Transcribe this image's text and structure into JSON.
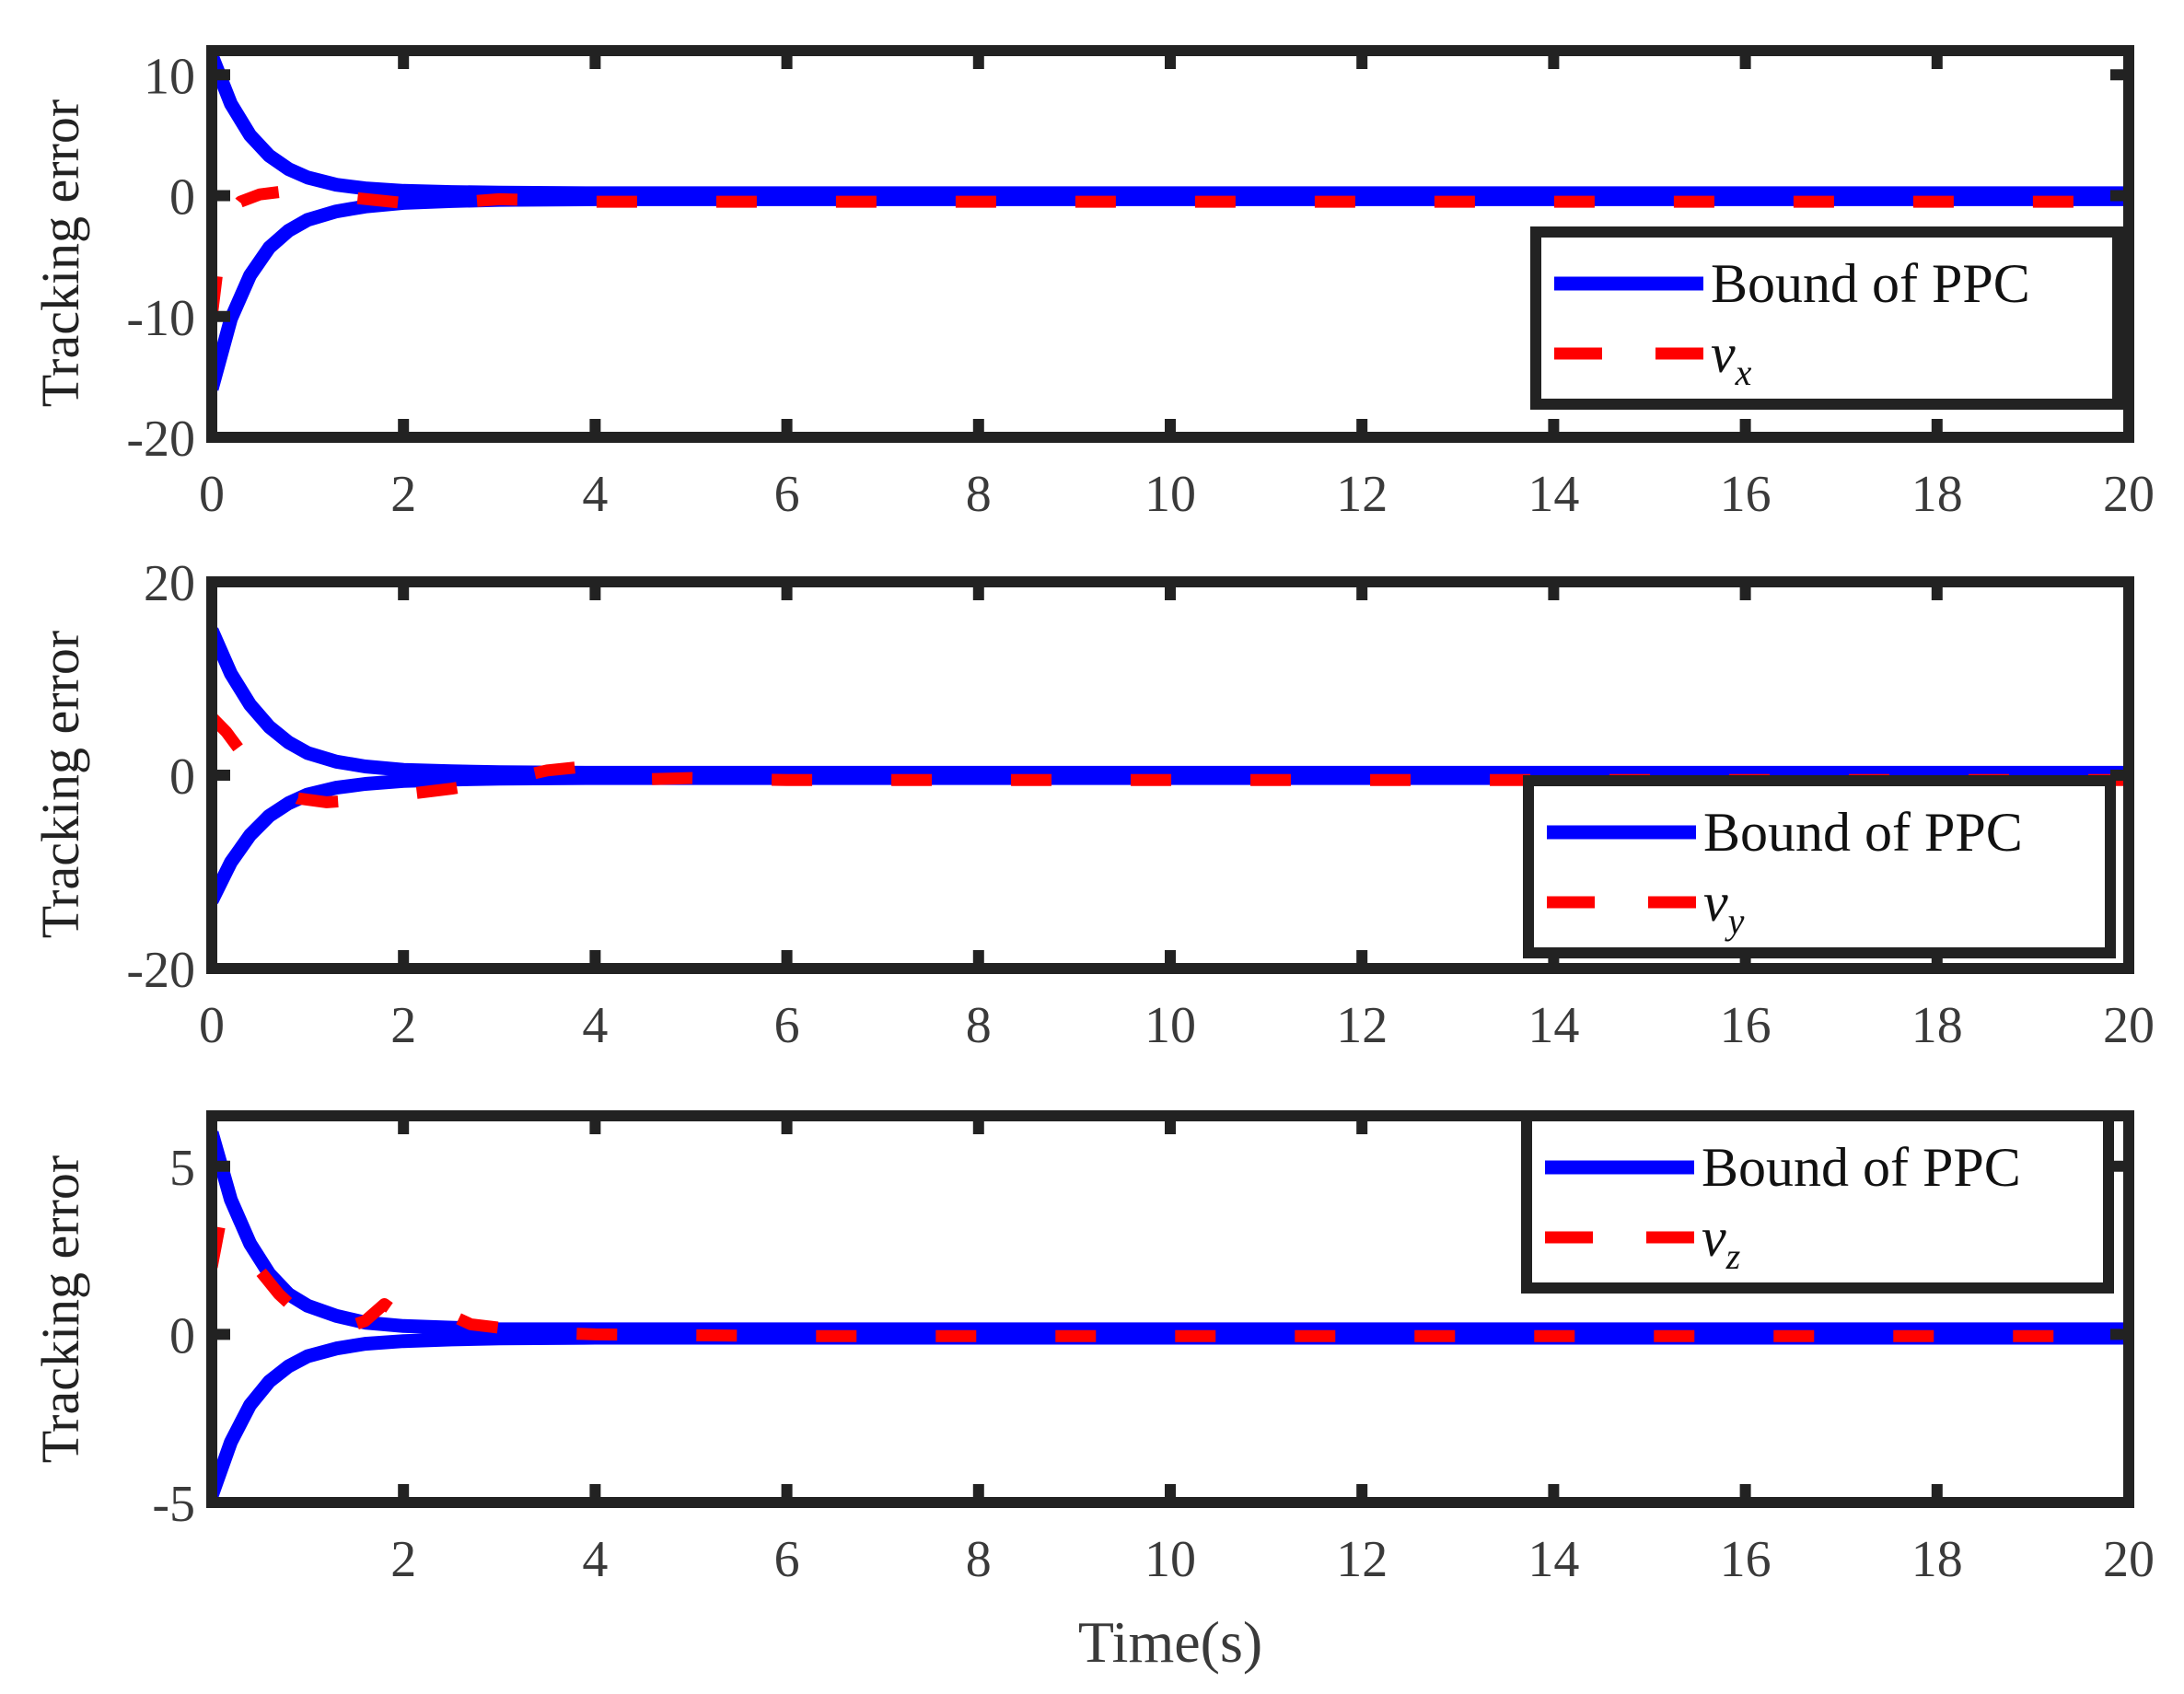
{
  "colors": {
    "bound": "#0000ff",
    "signal": "#ff0000",
    "frame": "#222222"
  },
  "shared_xlabel": "Time(s)",
  "chart_data": [
    {
      "type": "line",
      "ylabel": "Tracking error",
      "xlim": [
        0,
        20
      ],
      "ylim": [
        -20,
        12
      ],
      "xticks": [
        "0",
        "2",
        "4",
        "6",
        "8",
        "10",
        "12",
        "14",
        "16",
        "18",
        "20"
      ],
      "yticks": [
        "-20",
        "-10",
        "0",
        "10"
      ],
      "legend_position": "right",
      "legend": {
        "bound": "Bound of PPC",
        "var": "v",
        "sub": "x"
      },
      "series": [
        {
          "role": "bound-upper",
          "x": [
            0,
            0.2,
            0.4,
            0.6,
            0.8,
            1,
            1.3,
            1.6,
            2,
            2.5,
            3,
            4,
            6,
            10,
            20
          ],
          "y": [
            11.6,
            7.6,
            5.0,
            3.3,
            2.2,
            1.5,
            0.9,
            0.6,
            0.4,
            0.3,
            0.25,
            0.2,
            0.2,
            0.2,
            0.2
          ]
        },
        {
          "role": "bound-lower",
          "x": [
            0,
            0.2,
            0.4,
            0.6,
            0.8,
            1,
            1.3,
            1.6,
            2,
            2.5,
            3,
            4,
            6,
            10,
            20
          ],
          "y": [
            -16.0,
            -10.2,
            -6.6,
            -4.3,
            -2.9,
            -2.0,
            -1.3,
            -0.9,
            -0.6,
            -0.45,
            -0.35,
            -0.3,
            -0.3,
            -0.3,
            -0.3
          ]
        },
        {
          "role": "signal",
          "x": [
            0,
            0.1,
            0.2,
            0.3,
            0.5,
            0.7,
            1,
            1.5,
            2,
            2.5,
            3,
            4,
            6,
            10,
            20
          ],
          "y": [
            -10.0,
            -3.5,
            -1.5,
            -0.5,
            0.1,
            0.3,
            0.2,
            -0.2,
            -0.6,
            -0.6,
            -0.3,
            -0.5,
            -0.5,
            -0.5,
            -0.5
          ]
        }
      ]
    },
    {
      "type": "line",
      "ylabel": "Tracking error",
      "xlim": [
        0,
        20
      ],
      "ylim": [
        -20,
        20
      ],
      "xticks": [
        "0",
        "2",
        "4",
        "6",
        "8",
        "10",
        "12",
        "14",
        "16",
        "18",
        "20"
      ],
      "yticks": [
        "-20",
        "0",
        "20"
      ],
      "legend_position": "right",
      "legend": {
        "bound": "Bound of PPC",
        "var": "v",
        "sub": "y"
      },
      "series": [
        {
          "role": "bound-upper",
          "x": [
            0,
            0.2,
            0.4,
            0.6,
            0.8,
            1,
            1.3,
            1.6,
            2,
            2.5,
            3,
            4,
            6,
            10,
            20
          ],
          "y": [
            15,
            10.5,
            7.3,
            5.0,
            3.4,
            2.3,
            1.4,
            0.9,
            0.55,
            0.4,
            0.3,
            0.25,
            0.25,
            0.25,
            0.25
          ]
        },
        {
          "role": "bound-lower",
          "x": [
            0,
            0.2,
            0.4,
            0.6,
            0.8,
            1,
            1.3,
            1.6,
            2,
            2.5,
            3,
            4,
            6,
            10,
            20
          ],
          "y": [
            -13,
            -9.0,
            -6.2,
            -4.2,
            -2.9,
            -2.0,
            -1.3,
            -0.9,
            -0.6,
            -0.45,
            -0.35,
            -0.3,
            -0.3,
            -0.3,
            -0.3
          ]
        },
        {
          "role": "signal",
          "x": [
            0,
            0.15,
            0.3,
            0.5,
            0.7,
            0.9,
            1.2,
            1.5,
            2,
            2.5,
            3,
            3.5,
            3.8,
            4.2,
            5,
            6,
            10,
            20
          ],
          "y": [
            6.0,
            4.5,
            2.5,
            0.3,
            -1.4,
            -2.4,
            -2.8,
            -2.6,
            -2.0,
            -1.4,
            -0.6,
            0.5,
            0.8,
            -0.5,
            -0.3,
            -0.5,
            -0.5,
            -0.5
          ]
        }
      ]
    },
    {
      "type": "line",
      "ylabel": "Tracking error",
      "xlim": [
        0,
        20
      ],
      "ylim": [
        -5,
        6.5
      ],
      "xticks": [
        "2",
        "4",
        "6",
        "8",
        "10",
        "12",
        "14",
        "16",
        "18",
        "20"
      ],
      "yticks": [
        "-5",
        "0",
        "5"
      ],
      "legend_position": "top-right",
      "legend": {
        "bound": "Bound of PPC",
        "var": "v",
        "sub": "z"
      },
      "series": [
        {
          "role": "bound-upper",
          "x": [
            0,
            0.2,
            0.4,
            0.6,
            0.8,
            1,
            1.3,
            1.6,
            2,
            2.5,
            3,
            4,
            6,
            10,
            20
          ],
          "y": [
            6.0,
            4.0,
            2.7,
            1.8,
            1.2,
            0.85,
            0.55,
            0.35,
            0.25,
            0.2,
            0.15,
            0.15,
            0.15,
            0.15,
            0.15
          ]
        },
        {
          "role": "bound-lower",
          "x": [
            0,
            0.2,
            0.4,
            0.6,
            0.8,
            1,
            1.3,
            1.6,
            2,
            2.5,
            3,
            4,
            6,
            10,
            20
          ],
          "y": [
            -4.8,
            -3.2,
            -2.1,
            -1.4,
            -0.95,
            -0.65,
            -0.42,
            -0.28,
            -0.2,
            -0.15,
            -0.12,
            -0.1,
            -0.1,
            -0.1,
            -0.1
          ]
        },
        {
          "role": "signal",
          "x": [
            0,
            0.1,
            0.3,
            0.5,
            0.7,
            1,
            1.3,
            1.6,
            1.8,
            2.1,
            2.4,
            2.7,
            3,
            3.5,
            4,
            6,
            10,
            20
          ],
          "y": [
            2.0,
            3.5,
            2.8,
            1.9,
            1.2,
            0.4,
            0.1,
            0.4,
            0.9,
            0.3,
            0.7,
            0.3,
            0.2,
            0.05,
            0.0,
            -0.05,
            -0.05,
            -0.05
          ]
        }
      ]
    }
  ]
}
